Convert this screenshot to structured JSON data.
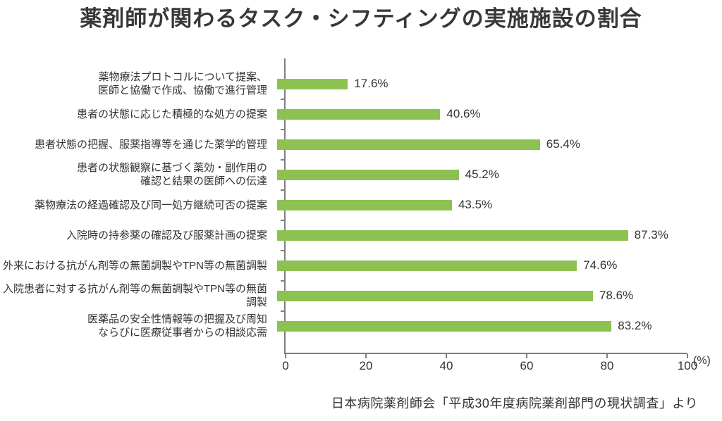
{
  "source": "日本病院薬剤師会「平成30年度病院薬剤部門の現状調査」より",
  "colors": {
    "bar": "#8dc152",
    "axis": "#7f7f7f",
    "text": "#333333",
    "title": "#383838"
  },
  "chart_data": {
    "type": "bar",
    "orientation": "horizontal",
    "title": "薬剤師が関わるタスク・シフティングの実施施設の割合",
    "categories": [
      "薬物療法プロトコルについて提案、\n医師と協働で作成、協働で進行管理",
      "患者の状態に応じた積極的な処方の提案",
      "患者状態の把握、服薬指導等を通じた薬学的管理",
      "患者の状態観察に基づく薬効・副作用の\n確認と結果の医師への伝達",
      "薬物療法の経過確認及び同一処方継続可否の提案",
      "入院時の持参薬の確認及び服薬計画の提案",
      "外来における抗がん剤等の無菌調製やTPN等の無菌調製",
      "入院患者に対する抗がん剤等の無菌調製やTPN等の無菌調製",
      "医薬品の安全性情報等の把握及び周知\nならびに医療従事者からの相談応需"
    ],
    "values": [
      17.6,
      40.6,
      65.4,
      45.2,
      43.5,
      87.3,
      74.6,
      78.6,
      83.2
    ],
    "value_labels": [
      "17.6%",
      "40.6%",
      "65.4%",
      "45.2%",
      "43.5%",
      "87.3%",
      "74.6%",
      "78.6%",
      "83.2%"
    ],
    "xlabel": "",
    "ylabel": "",
    "xlim": [
      0,
      100
    ],
    "x_ticks": [
      0,
      20,
      40,
      60,
      80,
      100
    ],
    "x_unit": "(%)",
    "grid": false,
    "legend": false
  }
}
